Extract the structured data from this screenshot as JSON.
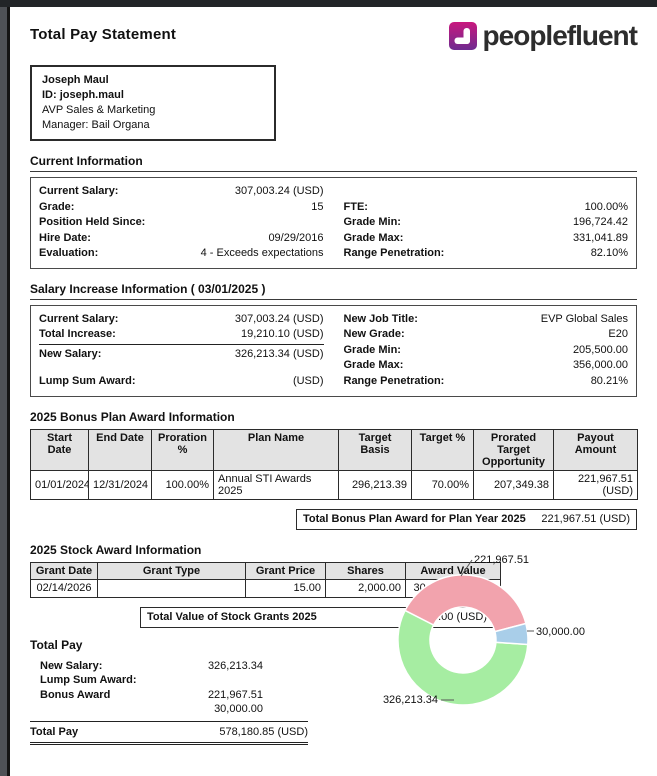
{
  "header": {
    "title": "Total Pay Statement",
    "logo_text": "peoplefluent",
    "logo_colors": {
      "top": "#C9187E",
      "bottom": "#6E2B90"
    }
  },
  "employee": {
    "name": "Joseph Maul",
    "id": "ID:  joseph.maul",
    "job_title": "AVP Sales & Marketing",
    "manager": "Manager:  Bail Organa"
  },
  "current_info": {
    "heading": "Current Information",
    "rows": [
      {
        "ll": "Current Salary:",
        "lv": "307,003.24 (USD)",
        "rl": "",
        "rv": ""
      },
      {
        "ll": "Grade:",
        "lv": "15",
        "rl": "FTE:",
        "rv": "100.00%"
      },
      {
        "ll": "Position Held Since:",
        "lv": "",
        "rl": "Grade Min:",
        "rv": "196,724.42"
      },
      {
        "ll": "Hire Date:",
        "lv": "09/29/2016",
        "rl": "Grade Max:",
        "rv": "331,041.89"
      },
      {
        "ll": "Evaluation:",
        "lv": "4 - Exceeds expectations",
        "rl": "Range Penetration:",
        "rv": "82.10%"
      }
    ]
  },
  "salary_increase": {
    "heading": "Salary Increase Information ( 03/01/2025 )",
    "left": [
      {
        "label": "Current Salary:",
        "value": "307,003.24 (USD)"
      },
      {
        "label": "Total Increase:",
        "value": "19,210.10 (USD)"
      },
      {
        "label": "New Salary:",
        "value": "326,213.34 (USD)"
      },
      {
        "label": "Lump Sum Award:",
        "value": "(USD)"
      }
    ],
    "right": [
      {
        "label": "New Job Title:",
        "value": "EVP Global Sales"
      },
      {
        "label": "New Grade:",
        "value": "E20"
      },
      {
        "label": "Grade Min:",
        "value": "205,500.00"
      },
      {
        "label": "Grade Max:",
        "value": "356,000.00"
      },
      {
        "label": "Range Penetration:",
        "value": "80.21%"
      }
    ]
  },
  "bonus": {
    "heading": "2025 Bonus Plan Award Information",
    "columns": [
      "Start Date",
      "End Date",
      "Proration %",
      "Plan Name",
      "Target Basis",
      "Target %",
      "Prorated Target Opportunity",
      "Payout Amount"
    ],
    "row": [
      "01/01/2024",
      "12/31/2024",
      "100.00%",
      "Annual STI Awards 2025",
      "296,213.39",
      "70.00%",
      "207,349.38",
      "221,967.51 (USD)"
    ],
    "total_label": "Total Bonus Plan Award for Plan Year 2025",
    "total_value": "221,967.51 (USD)"
  },
  "stock": {
    "heading": "2025 Stock Award Information",
    "columns": [
      "Grant Date",
      "Grant Type",
      "Grant Price",
      "Shares",
      "Award Value"
    ],
    "row": [
      "02/14/2026",
      "",
      "15.00",
      "2,000.00",
      "30,000.00 (USD)"
    ],
    "total_label": "Total Value of Stock Grants 2025",
    "total_value": "30,000.00 (USD)"
  },
  "total_pay": {
    "heading": "Total Pay",
    "rows": [
      {
        "label": "New Salary:",
        "value": "326,213.34"
      },
      {
        "label": "Lump Sum Award:",
        "value": ""
      },
      {
        "label": "Bonus Award",
        "value": "221,967.51"
      },
      {
        "label": "",
        "value": "30,000.00"
      }
    ],
    "total_label": "Total Pay",
    "total_value": "578,180.85 (USD)"
  },
  "chart_data": {
    "type": "pie",
    "subtype": "donut",
    "title": "",
    "slices": [
      {
        "name": "new-salary",
        "label": "326,213.34",
        "value": 326213.34,
        "color": "#A6EDA2"
      },
      {
        "name": "bonus-award",
        "label": "221,967.51",
        "value": 221967.51,
        "color": "#F2A3AD"
      },
      {
        "name": "stock-award",
        "label": "30,000.00",
        "value": 30000.0,
        "color": "#A9CEE9"
      }
    ],
    "start_angle_deg": 356,
    "direction": "clockwise",
    "inner_radius_ratio": 0.5
  }
}
